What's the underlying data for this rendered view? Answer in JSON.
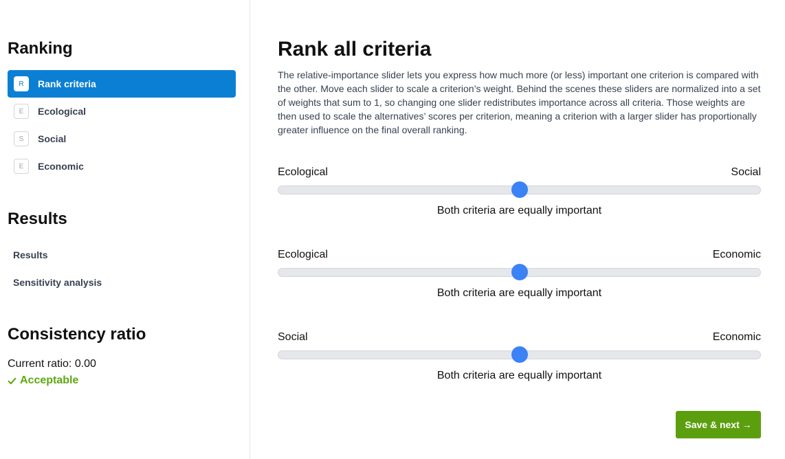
{
  "sidebar": {
    "ranking_heading": "Ranking",
    "nav_items": [
      {
        "badge": "R",
        "label": "Rank criteria",
        "active": true
      },
      {
        "badge": "E",
        "label": "Ecological",
        "active": false
      },
      {
        "badge": "S",
        "label": "Social",
        "active": false
      },
      {
        "badge": "E",
        "label": "Economic",
        "active": false
      }
    ],
    "results_heading": "Results",
    "results_links": [
      "Results",
      "Sensitivity analysis"
    ],
    "consistency_heading": "Consistency ratio",
    "current_ratio": "Current ratio: 0.00",
    "status": "Acceptable",
    "status_color": "#5ca80f"
  },
  "main": {
    "title": "Rank all criteria",
    "description": "The relative-importance slider lets you express how much more (or less) important one criterion is compared with the other. Move each slider to scale a criterion’s weight. Behind the scenes these sliders are normalized into a set of weights that sum to 1, so changing one slider redistributes importance across all criteria. Those weights are then used to scale the alternatives’ scores per criterion, meaning a criterion with a larger slider has proportionally greater influence on the final overall ranking.",
    "sliders": [
      {
        "left": "Ecological",
        "right": "Social",
        "value": 0.5,
        "caption": "Both criteria are equally important"
      },
      {
        "left": "Ecological",
        "right": "Economic",
        "value": 0.5,
        "caption": "Both criteria are equally important"
      },
      {
        "left": "Social",
        "right": "Economic",
        "value": 0.5,
        "caption": "Both criteria are equally important"
      }
    ],
    "save_label": "Save & next →"
  },
  "colors": {
    "accent": "#0b7fd4",
    "slider_thumb": "#3b82f6",
    "save_button": "#5c9f0e"
  }
}
